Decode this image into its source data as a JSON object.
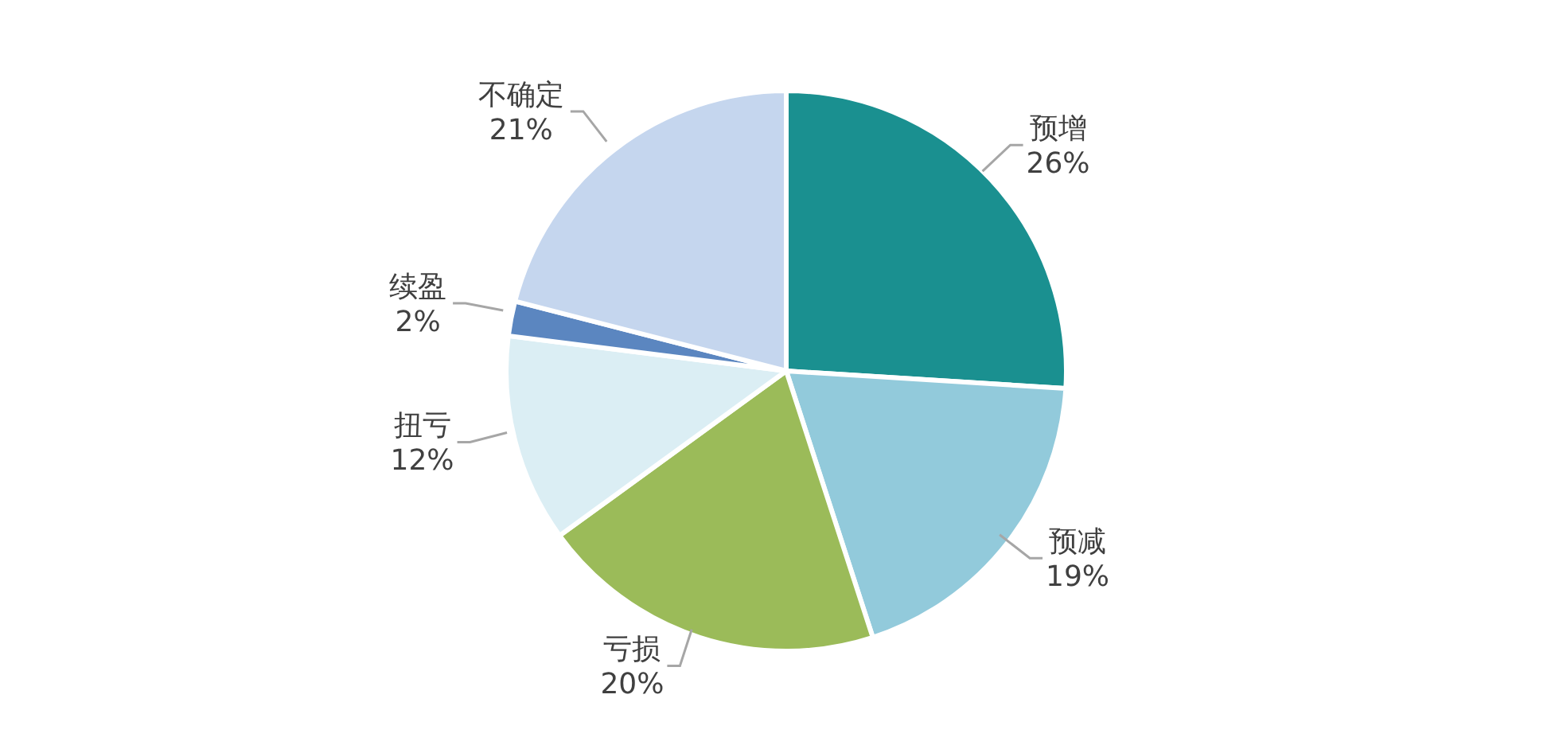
{
  "chart_data": {
    "type": "pie",
    "categories": [
      "预增",
      "预减",
      "亏损",
      "扭亏",
      "续盈",
      "不确定"
    ],
    "values": [
      26,
      19,
      20,
      12,
      2,
      21
    ],
    "colors": [
      "#1a9090",
      "#92cadb",
      "#9bbb59",
      "#dbeef4",
      "#5b86c0",
      "#c5d6ee"
    ],
    "value_labels": [
      "26%",
      "19%",
      "20%",
      "12%",
      "2%",
      "21%"
    ]
  }
}
